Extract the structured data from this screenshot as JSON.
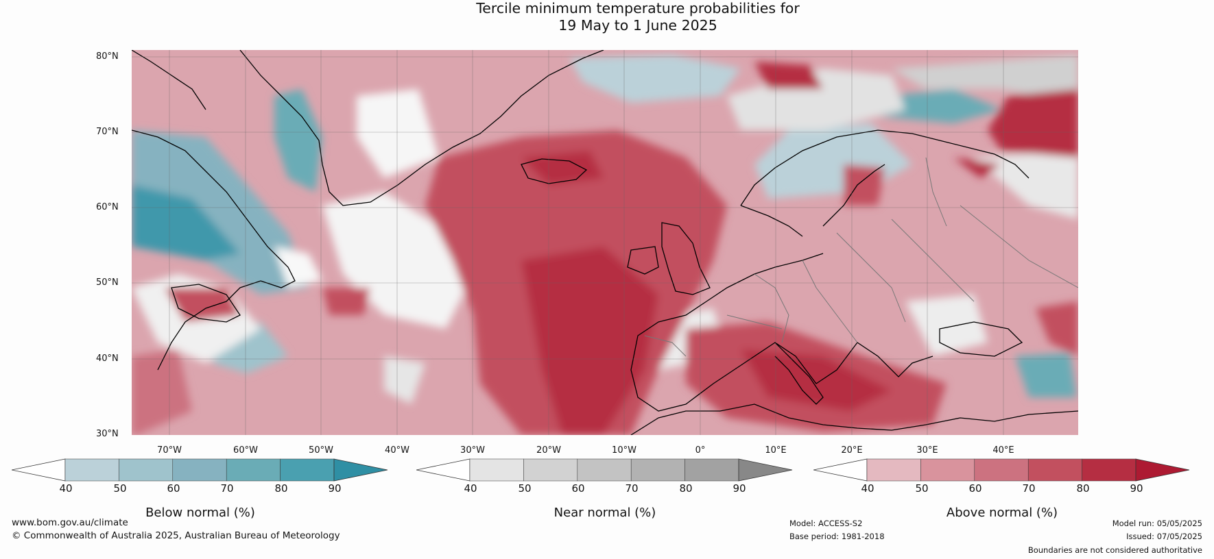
{
  "title": {
    "line1": "Tercile minimum temperature probabilities for",
    "line2": "19 May to 1 June 2025"
  },
  "map": {
    "lat_labels": [
      "80°N",
      "70°N",
      "60°N",
      "50°N",
      "40°N",
      "30°N"
    ],
    "lon_labels": [
      "70°W",
      "60°W",
      "50°W",
      "40°W",
      "30°W",
      "20°W",
      "10°W",
      "0°",
      "10°E",
      "20°E",
      "30°E",
      "40°E"
    ],
    "lat_range": [
      30,
      80
    ],
    "lon_range": [
      -77.5,
      47.5
    ],
    "region": "North Atlantic and Europe"
  },
  "colorbars": [
    {
      "label": "Below normal (%)",
      "ticks": [
        "40",
        "50",
        "60",
        "70",
        "80",
        "90"
      ],
      "colors": [
        "#ffffff",
        "#bbd1d9",
        "#9fc3cc",
        "#86b2c0",
        "#6aacb6",
        "#4aa0b0",
        "#2f8fa4"
      ]
    },
    {
      "label": "Near normal (%)",
      "ticks": [
        "40",
        "50",
        "60",
        "70",
        "80",
        "90"
      ],
      "colors": [
        "#ffffff",
        "#e4e4e4",
        "#d2d2d2",
        "#c3c3c3",
        "#b2b2b2",
        "#a2a2a2",
        "#888888"
      ]
    },
    {
      "label": "Above normal (%)",
      "ticks": [
        "40",
        "50",
        "60",
        "70",
        "80",
        "90"
      ],
      "colors": [
        "#ffffff",
        "#e4b9c0",
        "#d9939d",
        "#cc7280",
        "#c2505f",
        "#b52e42",
        "#ad1a32"
      ]
    }
  ],
  "footer": {
    "website": "www.bom.gov.au/climate",
    "copyright": "© Commonwealth of Australia 2025, Australian Bureau of Meteorology",
    "model": "Model: ACCESS-S2",
    "base_period": "Base period: 1981-2018",
    "model_run": "Model run: 05/05/2025",
    "issued": "Issued: 07/05/2025",
    "disclaimer": "Boundaries are not considered authoritative"
  }
}
